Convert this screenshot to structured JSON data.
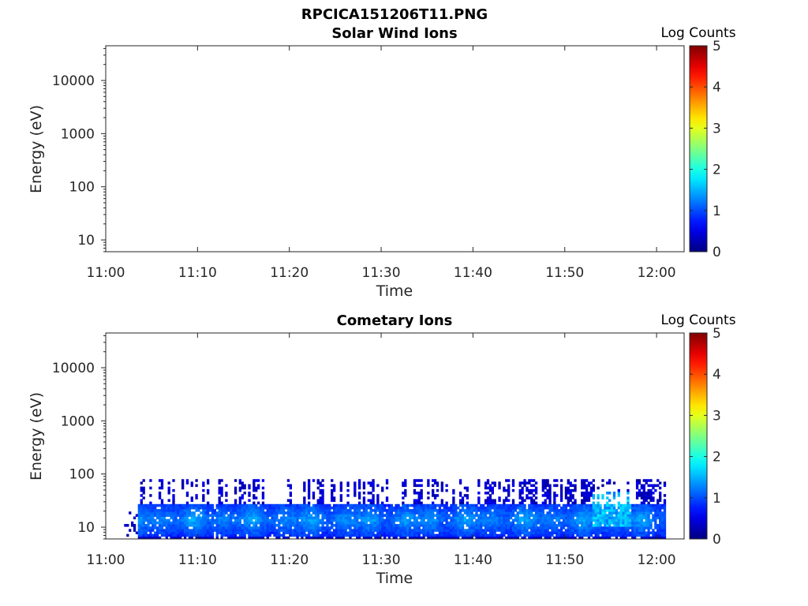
{
  "figure_title": "RPCICA151206T11.PNG",
  "chart_data": [
    {
      "type": "heatmap",
      "title": "Solar Wind Ions",
      "xlabel": "Time",
      "ylabel": "Energy (eV)",
      "x_ticks": [
        "11:00",
        "11:10",
        "11:20",
        "11:30",
        "11:40",
        "11:50",
        "12:00"
      ],
      "xlim": [
        "11:00",
        "12:03"
      ],
      "y_scale": "log",
      "y_ticks": [
        10,
        100,
        1000,
        10000
      ],
      "y_tick_labels": [
        "10",
        "100",
        "1000",
        "10000"
      ],
      "ylim": [
        6,
        45000
      ],
      "colorbar": {
        "label": "Log Counts",
        "range": [
          0,
          5
        ],
        "ticks": [
          "0",
          "1",
          "2",
          "3",
          "4",
          "5"
        ],
        "colormap": "jet"
      },
      "data": []
    },
    {
      "type": "heatmap",
      "title": "Cometary Ions",
      "xlabel": "Time",
      "ylabel": "Energy (eV)",
      "x_ticks": [
        "11:00",
        "11:10",
        "11:20",
        "11:30",
        "11:40",
        "11:50",
        "12:00"
      ],
      "xlim": [
        "11:00",
        "12:03"
      ],
      "y_scale": "log",
      "y_ticks": [
        10,
        100,
        1000,
        10000
      ],
      "y_tick_labels": [
        "10",
        "100",
        "1000",
        "10000"
      ],
      "ylim": [
        6,
        45000
      ],
      "colorbar": {
        "label": "Log Counts",
        "range": [
          0,
          5
        ],
        "ticks": [
          "0",
          "1",
          "2",
          "3",
          "4",
          "5"
        ],
        "colormap": "jet"
      },
      "data_extent": {
        "time_start": "11:02",
        "time_end": "12:01",
        "energy_min_eV": 6,
        "energy_max_eV": 80
      },
      "data_bands": [
        {
          "energy_range_eV": [
            7,
            28
          ],
          "log_counts": 1.2,
          "description": "persistent band, peaks near 15 eV"
        },
        {
          "energy_range_eV": [
            28,
            80
          ],
          "log_counts": 0.5,
          "description": "intermittent"
        },
        {
          "time_range": [
            "11:53",
            "11:57"
          ],
          "energy_range_eV": [
            10,
            45
          ],
          "log_counts": 1.7
        }
      ]
    }
  ]
}
